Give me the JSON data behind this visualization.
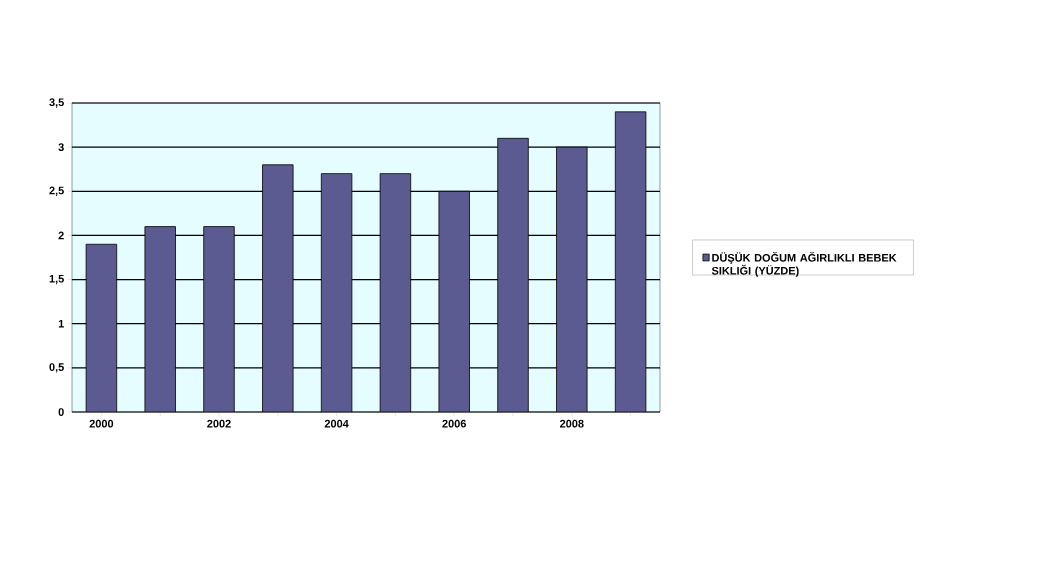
{
  "chart_data": {
    "type": "bar",
    "categories": [
      "2000",
      null,
      "2002",
      null,
      "2004",
      null,
      "2006",
      null,
      "2008",
      null
    ],
    "series": [
      {
        "name": "DÜŞÜK DOĞUM AĞIRLIKLI BEBEK SIKLIĞI (YÜZDE)",
        "color": "#5b5b91",
        "values": [
          1.9,
          2.1,
          2.1,
          2.8,
          2.7,
          2.7,
          2.5,
          3.1,
          3.0,
          3.4
        ]
      }
    ],
    "ylim": [
      0,
      3.5
    ],
    "yticks": [
      0,
      {
        "value": 0.5,
        "label": "0,5"
      },
      1,
      {
        "value": 1.5,
        "label": "1,5"
      },
      2,
      {
        "value": 2.5,
        "label": "2,5"
      },
      3,
      {
        "value": 3.5,
        "label": "3,5"
      }
    ],
    "grid": "y",
    "legend": "right"
  }
}
